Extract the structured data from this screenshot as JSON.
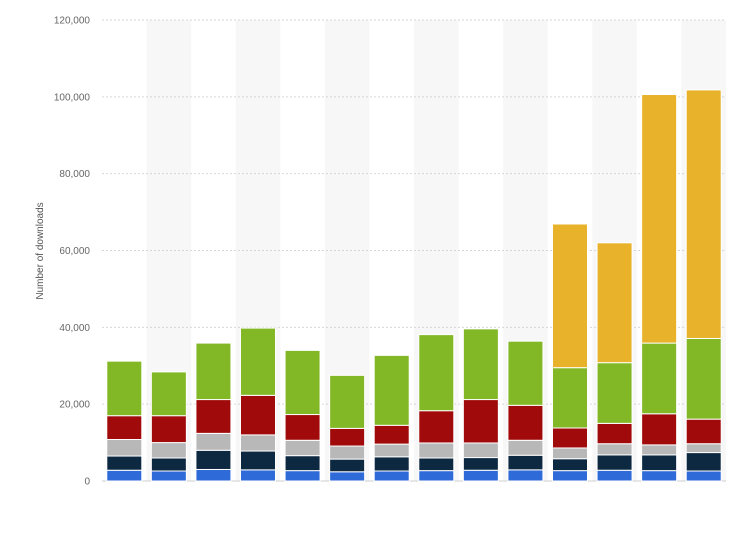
{
  "chart_data": {
    "type": "bar",
    "stacked": true,
    "ylabel": "Number of downloads",
    "xlabel": "",
    "ylim": [
      0,
      120000
    ],
    "yticks": [
      0,
      20000,
      40000,
      60000,
      80000,
      100000,
      120000
    ],
    "ytick_labels": [
      "0",
      "20,000",
      "40,000",
      "60,000",
      "80,000",
      "100,000",
      "120,000"
    ],
    "grid": true,
    "legend": "none",
    "categories": [
      "",
      "",
      "",
      "",
      "",
      "",
      "",
      "",
      "",
      "",
      "",
      "",
      "",
      ""
    ],
    "series": [
      {
        "color": "#2f6bd8",
        "values": [
          2800,
          2600,
          3000,
          2900,
          2700,
          2400,
          2600,
          2700,
          2800,
          2900,
          2700,
          2800,
          2700,
          2600
        ]
      },
      {
        "color": "#0d2841",
        "values": [
          3700,
          3400,
          5000,
          4900,
          3900,
          3300,
          3700,
          3300,
          3300,
          3800,
          3100,
          4000,
          4100,
          4800
        ]
      },
      {
        "color": "#b8b8b8",
        "values": [
          4300,
          4000,
          4400,
          4200,
          4000,
          3400,
          3300,
          3900,
          3800,
          3900,
          2800,
          2900,
          2600,
          2300
        ]
      },
      {
        "color": "#a00a0a",
        "values": [
          6200,
          7000,
          8800,
          10300,
          6700,
          4600,
          4900,
          8400,
          11300,
          9100,
          5200,
          5300,
          8100,
          6400
        ]
      },
      {
        "color": "#82b826",
        "values": [
          14200,
          11400,
          14700,
          17500,
          16700,
          13800,
          18200,
          19800,
          18400,
          16700,
          15700,
          15800,
          18400,
          21000
        ]
      },
      {
        "color": "#e8b22a",
        "values": [
          0,
          0,
          0,
          0,
          0,
          0,
          0,
          0,
          0,
          0,
          37400,
          31200,
          64700,
          64700
        ]
      }
    ]
  }
}
